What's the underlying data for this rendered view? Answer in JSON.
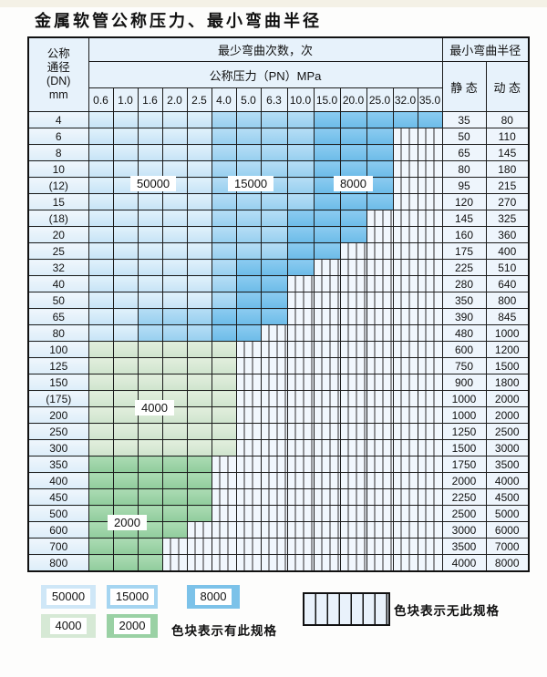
{
  "title": "金属软管公称压力、最小弯曲半径",
  "table": {
    "header": {
      "dn_lines": [
        "公称",
        "通径",
        "(DN)",
        "mm"
      ],
      "bend_times": "最少弯曲次数，次",
      "pressure_title": "公称压力（PN）MPa",
      "radius_title": "最小弯曲半径",
      "static_label": "静 态",
      "dynamic_label": "动 态"
    },
    "pressures": [
      "0.6",
      "1.0",
      "1.6",
      "2.0",
      "2.5",
      "4.0",
      "5.0",
      "6.3",
      "10.0",
      "15.0",
      "20.0",
      "25.0",
      "32.0",
      "35.0"
    ],
    "band_legend_meaning": {
      "b1": "50000",
      "b2": "15000",
      "b3": "8000",
      "g1": "4000",
      "g2": "2000",
      "x": "无此规格"
    },
    "rows": [
      {
        "dn": "4",
        "static": "35",
        "dynamic": "80",
        "bands": [
          [
            "b1",
            5
          ],
          [
            "b2",
            4
          ],
          [
            "b3",
            5
          ]
        ]
      },
      {
        "dn": "6",
        "static": "50",
        "dynamic": "110",
        "bands": [
          [
            "b1",
            5
          ],
          [
            "b2",
            4
          ],
          [
            "b3",
            3
          ]
        ]
      },
      {
        "dn": "8",
        "static": "65",
        "dynamic": "145",
        "bands": [
          [
            "b1",
            5
          ],
          [
            "b2",
            4
          ],
          [
            "b3",
            3
          ]
        ]
      },
      {
        "dn": "10",
        "static": "80",
        "dynamic": "180",
        "bands": [
          [
            "b1",
            5
          ],
          [
            "b2",
            4
          ],
          [
            "b3",
            3
          ]
        ]
      },
      {
        "dn": "(12)",
        "static": "95",
        "dynamic": "215",
        "bands": [
          [
            "b1",
            5
          ],
          [
            "b2",
            4
          ],
          [
            "b3",
            3
          ]
        ]
      },
      {
        "dn": "15",
        "static": "120",
        "dynamic": "270",
        "bands": [
          [
            "b1",
            5
          ],
          [
            "b2",
            4
          ],
          [
            "b3",
            3
          ]
        ]
      },
      {
        "dn": "(18)",
        "static": "145",
        "dynamic": "325",
        "bands": [
          [
            "b1",
            5
          ],
          [
            "b2",
            3
          ],
          [
            "b3",
            3
          ]
        ]
      },
      {
        "dn": "20",
        "static": "160",
        "dynamic": "360",
        "bands": [
          [
            "b1",
            5
          ],
          [
            "b2",
            3
          ],
          [
            "b3",
            3
          ]
        ]
      },
      {
        "dn": "25",
        "static": "175",
        "dynamic": "400",
        "bands": [
          [
            "b1",
            5
          ],
          [
            "b2",
            3
          ],
          [
            "b3",
            2
          ]
        ]
      },
      {
        "dn": "32",
        "static": "225",
        "dynamic": "510",
        "bands": [
          [
            "b1",
            5
          ],
          [
            "b2",
            1
          ],
          [
            "b3",
            3
          ]
        ]
      },
      {
        "dn": "40",
        "static": "280",
        "dynamic": "640",
        "bands": [
          [
            "b1",
            5
          ],
          [
            "b2",
            1
          ],
          [
            "b3",
            2
          ]
        ]
      },
      {
        "dn": "50",
        "static": "350",
        "dynamic": "800",
        "bands": [
          [
            "b1",
            5
          ],
          [
            "b2",
            1
          ],
          [
            "b3",
            2
          ]
        ]
      },
      {
        "dn": "65",
        "static": "390",
        "dynamic": "845",
        "bands": [
          [
            "b1",
            2
          ],
          [
            "b2",
            3
          ],
          [
            "b3",
            3
          ]
        ]
      },
      {
        "dn": "80",
        "static": "480",
        "dynamic": "1000",
        "bands": [
          [
            "b1",
            2
          ],
          [
            "b2",
            3
          ],
          [
            "b3",
            2
          ]
        ]
      },
      {
        "dn": "100",
        "static": "600",
        "dynamic": "1200",
        "bands": [
          [
            "g1",
            6
          ]
        ]
      },
      {
        "dn": "125",
        "static": "750",
        "dynamic": "1500",
        "bands": [
          [
            "g1",
            6
          ]
        ]
      },
      {
        "dn": "150",
        "static": "900",
        "dynamic": "1800",
        "bands": [
          [
            "g1",
            6
          ]
        ]
      },
      {
        "dn": "(175)",
        "static": "1000",
        "dynamic": "2000",
        "bands": [
          [
            "g1",
            6
          ]
        ]
      },
      {
        "dn": "200",
        "static": "1000",
        "dynamic": "2000",
        "bands": [
          [
            "g1",
            6
          ]
        ]
      },
      {
        "dn": "250",
        "static": "1250",
        "dynamic": "2500",
        "bands": [
          [
            "g1",
            6
          ]
        ]
      },
      {
        "dn": "300",
        "static": "1500",
        "dynamic": "3000",
        "bands": [
          [
            "g1",
            6
          ]
        ]
      },
      {
        "dn": "350",
        "static": "1750",
        "dynamic": "3500",
        "bands": [
          [
            "g2",
            5
          ]
        ]
      },
      {
        "dn": "400",
        "static": "2000",
        "dynamic": "4000",
        "bands": [
          [
            "g2",
            5
          ]
        ]
      },
      {
        "dn": "450",
        "static": "2250",
        "dynamic": "4500",
        "bands": [
          [
            "g2",
            5
          ]
        ]
      },
      {
        "dn": "500",
        "static": "2500",
        "dynamic": "5000",
        "bands": [
          [
            "g2",
            5
          ]
        ]
      },
      {
        "dn": "600",
        "static": "3000",
        "dynamic": "6000",
        "bands": [
          [
            "g2",
            4
          ]
        ]
      },
      {
        "dn": "700",
        "static": "3500",
        "dynamic": "7000",
        "bands": [
          [
            "g2",
            3
          ]
        ]
      },
      {
        "dn": "800",
        "static": "4000",
        "dynamic": "8000",
        "bands": [
          [
            "g2",
            3
          ]
        ]
      }
    ]
  },
  "overlays": {
    "l50000": "50000",
    "l15000": "15000",
    "l8000": "8000",
    "l4000": "4000",
    "l2000": "2000"
  },
  "legend": {
    "items": [
      {
        "value": "50000",
        "color": "#cfe7f7"
      },
      {
        "value": "15000",
        "color": "#a5d5f1"
      },
      {
        "value": "8000",
        "color": "#7cc2e9"
      },
      {
        "value": "4000",
        "color": "#d6e9d5"
      },
      {
        "value": "2000",
        "color": "#9ad1a4"
      }
    ],
    "has_spec_text": "色块表示有此规格",
    "no_spec_text": "色块表示无此规格"
  },
  "colors": {
    "band_50000": "#cfe7f7",
    "band_15000": "#a5d5f1",
    "band_8000": "#7cc2e9",
    "band_4000": "#d6e9d5",
    "band_2000": "#9ad1a4",
    "header_bg": "#e7f2fb",
    "grid_line": "#1c1c1c"
  }
}
